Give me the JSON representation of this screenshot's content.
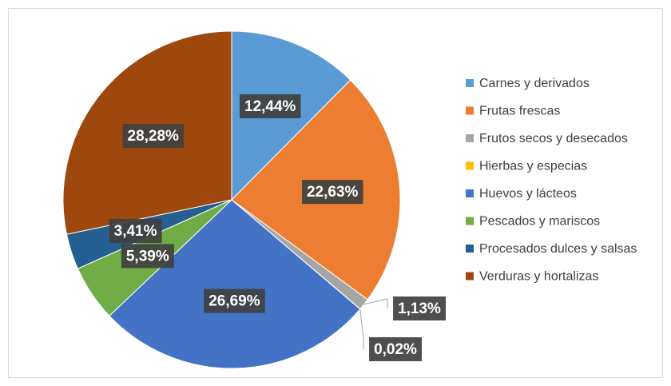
{
  "chart_data": {
    "type": "pie",
    "categories": [
      "Carnes y derivados",
      "Frutas frescas",
      "Frutos secos y desecados",
      "Hierbas y especias",
      "Huevos y lácteos",
      "Pescados y mariscos",
      "Procesados dulces y salsas",
      "Verduras y hortalizas"
    ],
    "values": [
      12.44,
      22.63,
      1.13,
      0.02,
      26.69,
      5.39,
      3.41,
      28.28
    ],
    "value_labels": [
      "12,44%",
      "22,63%",
      "1,13%",
      "0,02%",
      "26,69%",
      "5,39%",
      "3,41%",
      "28,28%"
    ],
    "colors": [
      "#5b9bd5",
      "#ed7d31",
      "#a5a5a5",
      "#ffc000",
      "#4472c4",
      "#70ad47",
      "#255e91",
      "#9e480e"
    ],
    "legend": "right"
  }
}
